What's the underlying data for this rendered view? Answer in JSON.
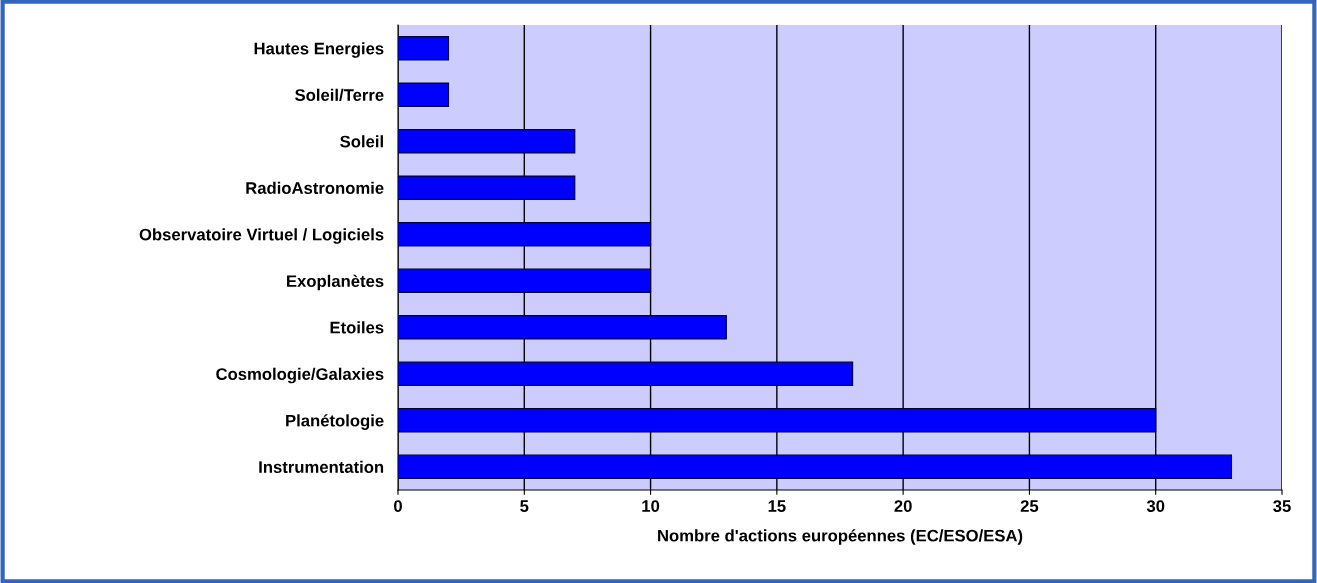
{
  "chart_data": {
    "type": "bar",
    "orientation": "horizontal",
    "categories": [
      "Hautes Energies",
      "Soleil/Terre",
      "Soleil",
      "RadioAstronomie",
      "Observatoire Virtuel / Logiciels",
      "Exoplanètes",
      "Etoiles",
      "Cosmologie/Galaxies",
      "Planétologie",
      "Instrumentation"
    ],
    "values": [
      2,
      2,
      7,
      7,
      10,
      10,
      13,
      18,
      30,
      33
    ],
    "color": "#0000ff",
    "xlabel": "Nombre d'actions européennes (EC/ESO/ESA)",
    "xlim": [
      0,
      35
    ],
    "xticks": [
      0,
      5,
      10,
      15,
      20,
      25,
      30,
      35
    ],
    "grid": "x",
    "legend": false
  }
}
